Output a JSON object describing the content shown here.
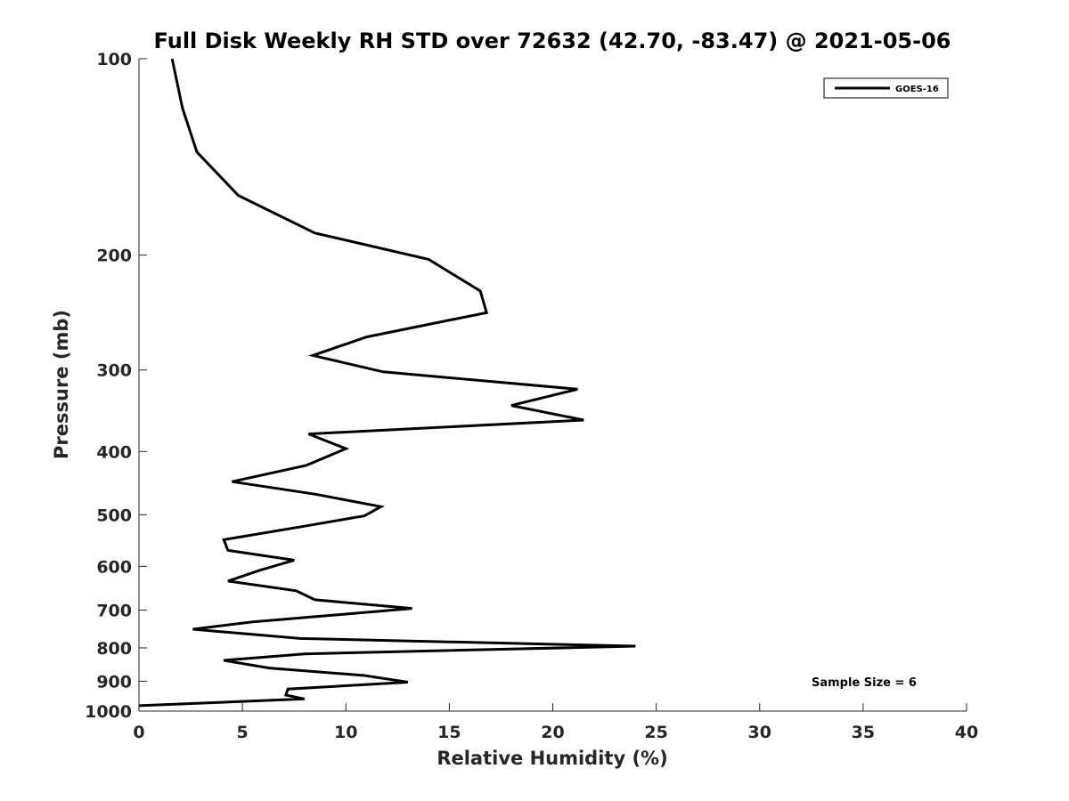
{
  "chart_data": {
    "type": "line",
    "title": "Full Disk Weekly RH STD over 72632 (42.70, -83.47) @ 2021-05-06",
    "xlabel": "Relative Humidity (%)",
    "ylabel": "Pressure (mb)",
    "xlim": [
      0,
      40
    ],
    "ylim": [
      100,
      1000
    ],
    "yscale": "log",
    "yreversed": true,
    "x_ticks": [
      0,
      5,
      10,
      15,
      20,
      25,
      30,
      35,
      40
    ],
    "y_ticks": [
      100,
      200,
      300,
      400,
      500,
      600,
      700,
      800,
      900,
      1000
    ],
    "grid": false,
    "legend": {
      "position": "top-right",
      "entries": [
        "GOES-16"
      ]
    },
    "annotation": "Sample Size = 6",
    "series": [
      {
        "name": "GOES-16",
        "color": "#000000",
        "x": [
          1.6,
          2.1,
          2.8,
          4.8,
          8.5,
          14.0,
          16.5,
          16.8,
          11.0,
          8.4,
          11.8,
          21.2,
          18.0,
          21.5,
          8.2,
          10.0,
          8.1,
          4.5,
          8.5,
          11.7,
          10.9,
          8.1,
          4.1,
          4.3,
          7.5,
          5.8,
          4.3,
          7.6,
          8.5,
          13.2,
          9.8,
          5.5,
          2.6,
          7.8,
          24.0,
          8.0,
          4.1,
          6.3,
          10.9,
          13.0,
          7.2,
          7.1,
          8.0,
          0.0
        ],
        "y": [
          100,
          119,
          139,
          162,
          185,
          203,
          227,
          245,
          267,
          285,
          302,
          321,
          340,
          358,
          376,
          396,
          420,
          445,
          465,
          486,
          502,
          520,
          546,
          567,
          587,
          609,
          632,
          654,
          675,
          696,
          711,
          730,
          749,
          774,
          795,
          817,
          836,
          859,
          882,
          903,
          925,
          945,
          958,
          981
        ]
      }
    ]
  }
}
